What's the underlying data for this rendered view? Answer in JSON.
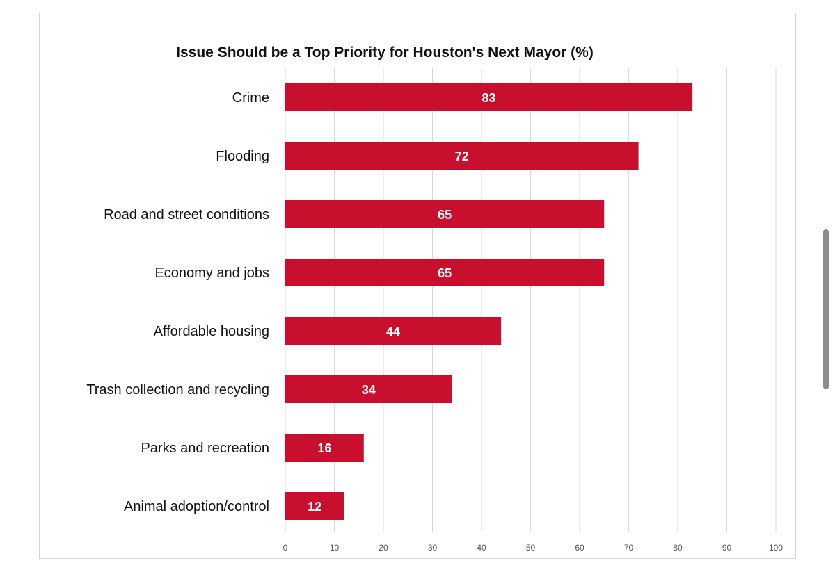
{
  "colors": {
    "bar": "#c8102e",
    "grid": "#d9d9d9",
    "value_text": "#ffffff",
    "scrollbar": "#8c8c8c"
  },
  "chart_data": {
    "type": "bar",
    "orientation": "horizontal",
    "title": "Issue Should be a Top Priority for Houston's Next Mayor (%)",
    "xlabel": "",
    "ylabel": "",
    "categories": [
      "Crime",
      "Flooding",
      "Road and street conditions",
      "Economy and jobs",
      "Affordable housing",
      "Trash collection and recycling",
      "Parks and recreation",
      "Animal adoption/control"
    ],
    "values": [
      83,
      72,
      65,
      65,
      44,
      34,
      16,
      12
    ],
    "data_labels": [
      "83",
      "72",
      "65",
      "65",
      "44",
      "34",
      "16",
      "12"
    ],
    "xlim": [
      0,
      100
    ],
    "x_ticks": [
      0,
      10,
      20,
      30,
      40,
      50,
      60,
      70,
      80,
      90,
      100
    ],
    "x_tick_labels": [
      "0",
      "10",
      "20",
      "30",
      "40",
      "50",
      "60",
      "70",
      "80",
      "90",
      "100"
    ],
    "grid": "vertical",
    "legend": "none"
  }
}
